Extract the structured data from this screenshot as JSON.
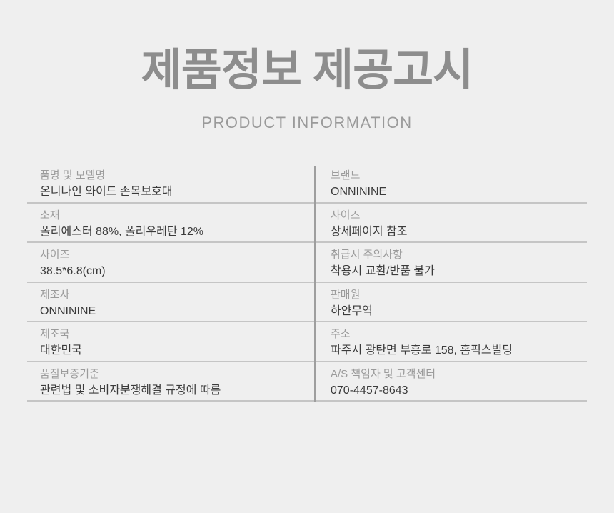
{
  "header": {
    "title": "제품정보 제공고시",
    "subtitle": "PRODUCT INFORMATION"
  },
  "colors": {
    "background": "#efefef",
    "title_text": "#8d8d8d",
    "subtitle_text": "#9a9a9a",
    "label_text": "#9b9b9b",
    "value_text": "#3b3b3b",
    "divider_horizontal": "#c5c5c5",
    "divider_vertical": "#9e9e9e"
  },
  "table": {
    "rows": [
      {
        "left": {
          "label": "품명 및 모델명",
          "value": "온니나인 와이드 손목보호대"
        },
        "right": {
          "label": "브랜드",
          "value": "ONNININE"
        }
      },
      {
        "left": {
          "label": "소재",
          "value": "폴리에스터 88%, 폴리우레탄 12%"
        },
        "right": {
          "label": "사이즈",
          "value": "상세페이지 참조"
        }
      },
      {
        "left": {
          "label": "사이즈",
          "value": "38.5*6.8(cm)"
        },
        "right": {
          "label": "취급시 주의사항",
          "value": "착용시 교환/반품 불가"
        }
      },
      {
        "left": {
          "label": "제조사",
          "value": "ONNININE"
        },
        "right": {
          "label": "판매원",
          "value": "하얀무역"
        }
      },
      {
        "left": {
          "label": "제조국",
          "value": "대한민국"
        },
        "right": {
          "label": "주소",
          "value": "파주시 광탄면 부흥로 158, 홈픽스빌딩"
        }
      },
      {
        "left": {
          "label": "품질보증기준",
          "value": "관련법 및 소비자분쟁해결 규정에 따름"
        },
        "right": {
          "label": "A/S 책임자 및 고객센터",
          "value": "070-4457-8643"
        }
      }
    ]
  }
}
